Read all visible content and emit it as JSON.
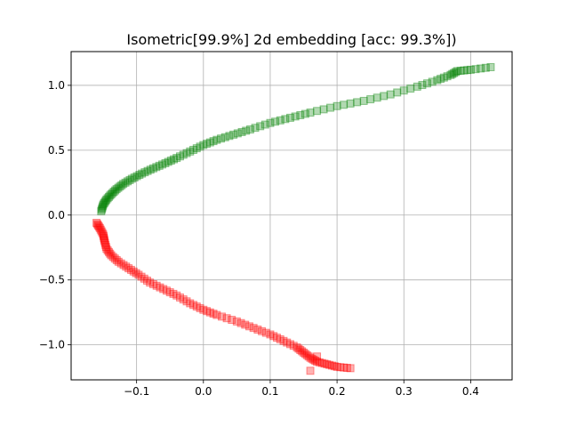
{
  "chart_data": {
    "type": "scatter",
    "title": "Isometric[99.9%] 2d embedding [acc: 99.3%])",
    "xlabel": "",
    "ylabel": "",
    "xlim": [
      -0.198,
      0.462
    ],
    "ylim": [
      -1.27,
      1.26
    ],
    "grid": true,
    "x_ticks": [
      -0.1,
      0.0,
      0.1,
      0.2,
      0.3,
      0.4
    ],
    "x_tick_labels": [
      "−0.1",
      "0.0",
      "0.1",
      "0.2",
      "0.3",
      "0.4"
    ],
    "y_ticks": [
      -1.0,
      -0.5,
      0.0,
      0.5,
      1.0
    ],
    "y_tick_labels": [
      "−1.0",
      "−0.5",
      "0.0",
      "0.5",
      "1.0"
    ],
    "series": [
      {
        "color": "#008000",
        "marker": "square",
        "alpha": 0.3,
        "points": [
          [
            -0.153,
            0.03
          ],
          [
            -0.15,
            0.08
          ],
          [
            -0.145,
            0.12
          ],
          [
            -0.138,
            0.16
          ],
          [
            -0.13,
            0.2
          ],
          [
            -0.12,
            0.24
          ],
          [
            -0.107,
            0.28
          ],
          [
            -0.092,
            0.32
          ],
          [
            -0.075,
            0.36
          ],
          [
            -0.057,
            0.4
          ],
          [
            -0.04,
            0.44
          ],
          [
            -0.02,
            0.49
          ],
          [
            0.0,
            0.54
          ],
          [
            0.02,
            0.58
          ],
          [
            0.045,
            0.62
          ],
          [
            0.07,
            0.66
          ],
          [
            0.1,
            0.71
          ],
          [
            0.13,
            0.75
          ],
          [
            0.16,
            0.79
          ],
          [
            0.2,
            0.84
          ],
          [
            0.24,
            0.88
          ],
          [
            0.28,
            0.93
          ],
          [
            0.32,
            0.99
          ],
          [
            0.35,
            1.04
          ],
          [
            0.37,
            1.08
          ],
          [
            0.38,
            1.11
          ],
          [
            0.4,
            1.12
          ],
          [
            0.43,
            1.14
          ]
        ]
      },
      {
        "color": "#ff0000",
        "marker": "square",
        "alpha": 0.3,
        "points": [
          [
            -0.16,
            -0.06
          ],
          [
            -0.155,
            -0.1
          ],
          [
            -0.15,
            -0.15
          ],
          [
            -0.148,
            -0.2
          ],
          [
            -0.145,
            -0.26
          ],
          [
            -0.138,
            -0.31
          ],
          [
            -0.127,
            -0.36
          ],
          [
            -0.112,
            -0.41
          ],
          [
            -0.097,
            -0.46
          ],
          [
            -0.08,
            -0.52
          ],
          [
            -0.06,
            -0.57
          ],
          [
            -0.04,
            -0.62
          ],
          [
            -0.02,
            -0.68
          ],
          [
            0.0,
            -0.73
          ],
          [
            0.02,
            -0.77
          ],
          [
            0.05,
            -0.82
          ],
          [
            0.075,
            -0.87
          ],
          [
            0.1,
            -0.92
          ],
          [
            0.12,
            -0.97
          ],
          [
            0.14,
            -1.02
          ],
          [
            0.15,
            -1.06
          ],
          [
            0.16,
            -1.1
          ],
          [
            0.17,
            -1.13
          ],
          [
            0.185,
            -1.15
          ],
          [
            0.2,
            -1.17
          ],
          [
            0.22,
            -1.18
          ],
          [
            0.16,
            -1.2
          ],
          [
            0.17,
            -1.09
          ]
        ]
      }
    ]
  }
}
